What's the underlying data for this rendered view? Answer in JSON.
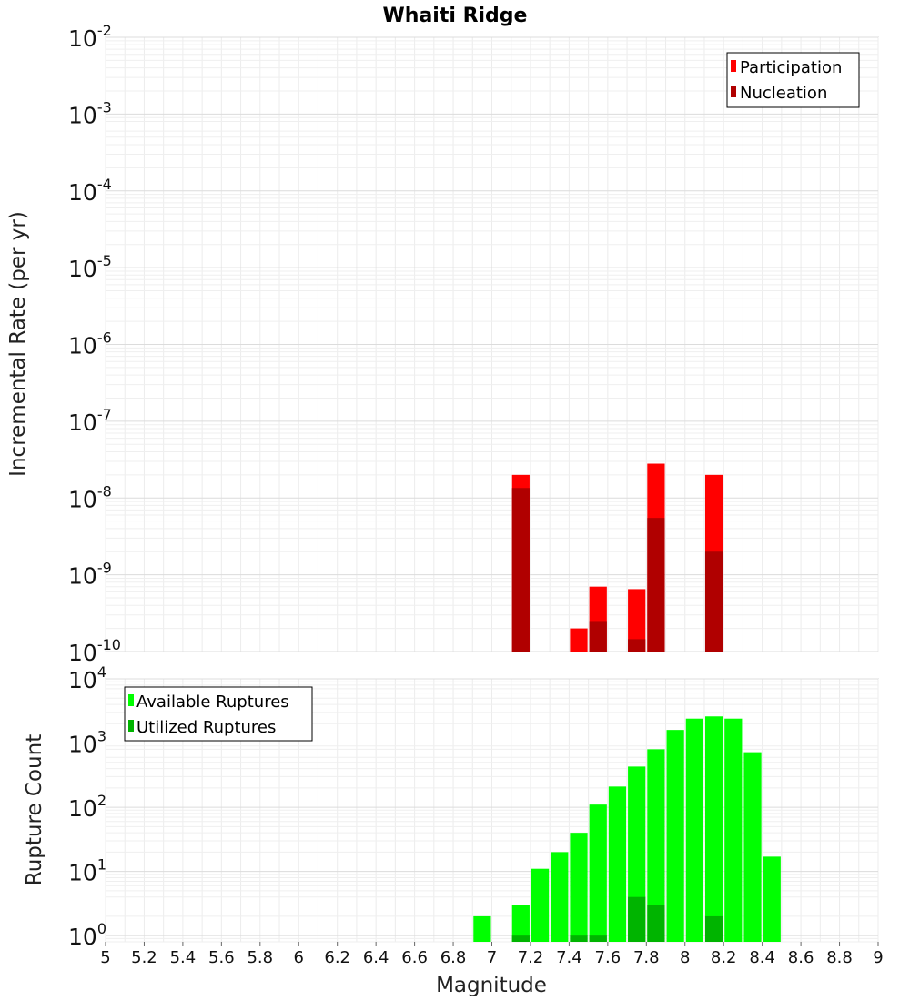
{
  "chart_data": [
    {
      "type": "bar",
      "title": "Whaiti Ridge",
      "xlabel": "",
      "ylabel": "Incremental Rate (per yr)",
      "yscale": "log",
      "ylim": [
        1e-10,
        0.01
      ],
      "xlim": [
        5,
        9
      ],
      "grid": true,
      "legend_position": "top-right",
      "y_ticks": [
        {
          "base": "10",
          "exp": "-10",
          "value": 1e-10
        },
        {
          "base": "10",
          "exp": "-9",
          "value": 1e-09
        },
        {
          "base": "10",
          "exp": "-8",
          "value": 1e-08
        },
        {
          "base": "10",
          "exp": "-7",
          "value": 1e-07
        },
        {
          "base": "10",
          "exp": "-6",
          "value": 1e-06
        },
        {
          "base": "10",
          "exp": "-5",
          "value": 1e-05
        },
        {
          "base": "10",
          "exp": "-4",
          "value": 0.0001
        },
        {
          "base": "10",
          "exp": "-3",
          "value": 0.001
        },
        {
          "base": "10",
          "exp": "-2",
          "value": 0.01
        }
      ],
      "series": [
        {
          "name": "Participation",
          "color": "#ff0000",
          "points": [
            {
              "x": 7.15,
              "y": 2e-08
            },
            {
              "x": 7.45,
              "y": 2e-10
            },
            {
              "x": 7.55,
              "y": 7e-10
            },
            {
              "x": 7.75,
              "y": 6.5e-10
            },
            {
              "x": 7.85,
              "y": 2.8e-08
            },
            {
              "x": 8.15,
              "y": 2e-08
            }
          ]
        },
        {
          "name": "Nucleation",
          "color": "#b00000",
          "points": [
            {
              "x": 7.15,
              "y": 1.35e-08
            },
            {
              "x": 7.55,
              "y": 2.5e-10
            },
            {
              "x": 7.75,
              "y": 1.45e-10
            },
            {
              "x": 7.85,
              "y": 5.5e-09
            },
            {
              "x": 8.15,
              "y": 2e-09
            }
          ]
        }
      ]
    },
    {
      "type": "bar",
      "title": "",
      "xlabel": "Magnitude",
      "ylabel": "Rupture Count",
      "yscale": "log",
      "ylim": [
        0.8,
        10000
      ],
      "xlim": [
        5,
        9
      ],
      "grid": true,
      "legend_position": "top-left",
      "y_ticks": [
        {
          "base": "10",
          "exp": "0",
          "value": 1
        },
        {
          "base": "10",
          "exp": "1",
          "value": 10
        },
        {
          "base": "10",
          "exp": "2",
          "value": 100
        },
        {
          "base": "10",
          "exp": "3",
          "value": 1000
        },
        {
          "base": "10",
          "exp": "4",
          "value": 10000
        }
      ],
      "x_ticks": [
        "5",
        "5.2",
        "5.4",
        "5.6",
        "5.8",
        "6",
        "6.2",
        "6.4",
        "6.6",
        "6.8",
        "7",
        "7.2",
        "7.4",
        "7.6",
        "7.8",
        "8",
        "8.2",
        "8.4",
        "8.6",
        "8.8",
        "9"
      ],
      "series": [
        {
          "name": "Available Ruptures",
          "color": "#00ff00",
          "points": [
            {
              "x": 6.95,
              "y": 2
            },
            {
              "x": 7.15,
              "y": 3
            },
            {
              "x": 7.25,
              "y": 11
            },
            {
              "x": 7.35,
              "y": 20
            },
            {
              "x": 7.45,
              "y": 40
            },
            {
              "x": 7.55,
              "y": 110
            },
            {
              "x": 7.65,
              "y": 210
            },
            {
              "x": 7.75,
              "y": 430
            },
            {
              "x": 7.85,
              "y": 800
            },
            {
              "x": 7.95,
              "y": 1600
            },
            {
              "x": 8.05,
              "y": 2400
            },
            {
              "x": 8.15,
              "y": 2600
            },
            {
              "x": 8.25,
              "y": 2400
            },
            {
              "x": 8.35,
              "y": 720
            },
            {
              "x": 8.45,
              "y": 17
            }
          ]
        },
        {
          "name": "Utilized Ruptures",
          "color": "#00b400",
          "points": [
            {
              "x": 7.15,
              "y": 1
            },
            {
              "x": 7.45,
              "y": 1
            },
            {
              "x": 7.55,
              "y": 1
            },
            {
              "x": 7.75,
              "y": 4
            },
            {
              "x": 7.85,
              "y": 3
            },
            {
              "x": 8.15,
              "y": 2
            }
          ]
        }
      ]
    }
  ]
}
